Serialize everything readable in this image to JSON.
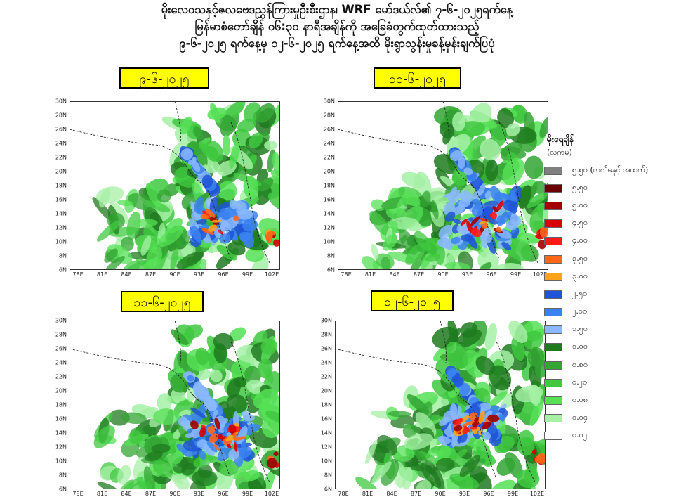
{
  "title_lines": [
    "မိုးလေဝသနှင့်ဇလဗေဒညွှန်ကြားမှုဦးစီးဌာန၊ WRF မော်ဒယ်လ်၏ ၇-၆-၂၀၂၅ရက်နေ့",
    "မြန်မာစံတော်ချိန် ၀၆:၃၀ နာရီအချိန်ကို အခြေခံတွက်ထုတ်ထားသည့်",
    "၉-၆-၂၀၂၅ ရက်နေ့မှ ၁၂-၆-၂၀၂၅ ရက်နေ့အထိ မိုးရွာသွန်းမှုခန့်မှန်းချက်ပြပုံ"
  ],
  "maps": [
    {
      "date_label": "၉-၆-၂၀၂၅"
    },
    {
      "date_label": "၁၀-၆-၂၀၂၅"
    },
    {
      "date_label": "၁၁-၆-၂၀၂၅"
    },
    {
      "date_label": "၁၂-၆-၂၀၂၅"
    }
  ],
  "y_ticks": [
    "30N",
    "28N",
    "26N",
    "24N",
    "22N",
    "20N",
    "18N",
    "16N",
    "14N",
    "12N",
    "10N",
    "8N",
    "6N"
  ],
  "x_ticks": [
    "78E",
    "81E",
    "84E",
    "87E",
    "90E",
    "93E",
    "96E",
    "99E",
    "102E"
  ],
  "legend": {
    "title": "မိုးရေချိန်",
    "unit": "(လက်မ)",
    "items": [
      {
        "label": "၅.၅၀ (လက်မနှင့် အထက်)",
        "color": "#7f7f7f"
      },
      {
        "label": "၅.၅၀",
        "color": "#6b0000"
      },
      {
        "label": "၅.၀၀",
        "color": "#a30000"
      },
      {
        "label": "၄.၅၀",
        "color": "#d80000"
      },
      {
        "label": "၄.၀၀",
        "color": "#ff1a1a"
      },
      {
        "label": "၃.၅၀",
        "color": "#ff6619"
      },
      {
        "label": "၃.၀၀",
        "color": "#ffa31a"
      },
      {
        "label": "၂.၅၀",
        "color": "#1f55d6"
      },
      {
        "label": "၂.၀၀",
        "color": "#3b82f0"
      },
      {
        "label": "၁.၅၀",
        "color": "#8ab8ff"
      },
      {
        "label": "၁.၀၀",
        "color": "#1f7a1f"
      },
      {
        "label": "၀.၈၀",
        "color": "#33a533"
      },
      {
        "label": "၀.၂၀",
        "color": "#40c840"
      },
      {
        "label": "၀.၀၈",
        "color": "#55e055"
      },
      {
        "label": "၀.၀၄",
        "color": "#a5f0a5"
      },
      {
        "label": "၀.၀၂",
        "color": "#ffffff"
      }
    ]
  }
}
